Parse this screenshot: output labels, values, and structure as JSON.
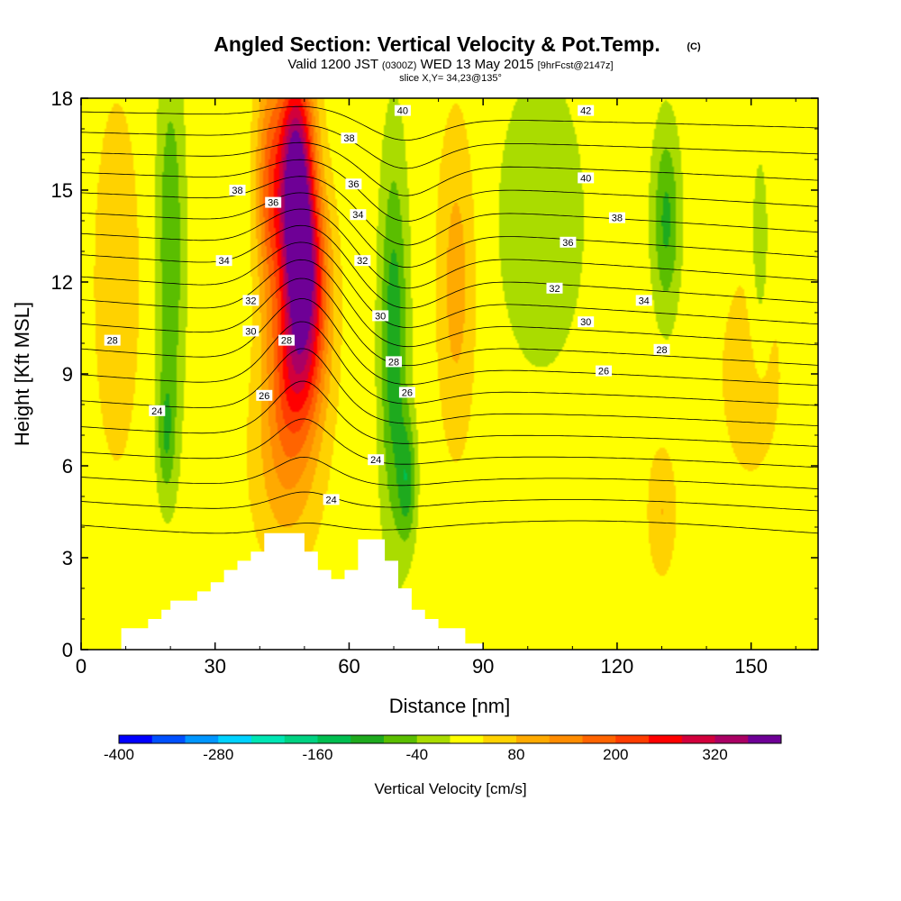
{
  "header": {
    "title": "Angled Section: Vertical Velocity & Pot.Temp.",
    "title_unit": "(C)",
    "valid_prefix": "Valid 1200 JST",
    "valid_z": "(0300Z)",
    "valid_date": "WED 13 May 2015",
    "fcst": "[9hrFcst@2147z]",
    "slice": "slice X,Y= 34,23@135°"
  },
  "chart_data": {
    "type": "heatmap",
    "title": "Angled Section: Vertical Velocity & Pot.Temp. (C)",
    "xlabel": "Distance [nm]",
    "ylabel": "Height [Kft MSL]",
    "xlim": [
      0,
      165
    ],
    "ylim": [
      0,
      18
    ],
    "x_ticks": [
      "0",
      "30",
      "60",
      "90",
      "120",
      "150"
    ],
    "y_ticks": [
      "0",
      "3",
      "6",
      "9",
      "12",
      "15",
      "18"
    ],
    "colorbar": {
      "label": "Vertical Velocity [cm/s]",
      "range": [
        -400,
        400
      ],
      "step": 40,
      "tick_labels": [
        "-400",
        "-280",
        "-160",
        "-40",
        "80",
        "200",
        "320"
      ],
      "colors": [
        "#0000ff",
        "#0050ff",
        "#0096ff",
        "#00d2ff",
        "#00e6b4",
        "#00d282",
        "#00be50",
        "#1eaa1e",
        "#5abe00",
        "#aadc00",
        "#ffff00",
        "#ffd200",
        "#ffaa00",
        "#ff8c00",
        "#ff6400",
        "#ff3c00",
        "#ff0000",
        "#d2003c",
        "#aa0064",
        "#6e0096"
      ]
    },
    "velocity_features": [
      {
        "x": 48,
        "y": 15.5,
        "value": 380,
        "sx": 4,
        "sy": 3.5
      },
      {
        "x": 50,
        "y": 12,
        "value": 300,
        "sx": 5,
        "sy": 3
      },
      {
        "x": 48,
        "y": 9,
        "value": 160,
        "sx": 6,
        "sy": 2.5
      },
      {
        "x": 46,
        "y": 6,
        "value": 90,
        "sx": 7,
        "sy": 3
      },
      {
        "x": 42,
        "y": 15,
        "value": 140,
        "sx": 3,
        "sy": 4
      },
      {
        "x": 84,
        "y": 12,
        "value": 80,
        "sx": 4,
        "sy": 5
      },
      {
        "x": 70,
        "y": 10,
        "value": -130,
        "sx": 3,
        "sy": 6
      },
      {
        "x": 73,
        "y": 5.5,
        "value": -110,
        "sx": 2,
        "sy": 2
      },
      {
        "x": 20,
        "y": 13,
        "value": -100,
        "sx": 3,
        "sy": 6
      },
      {
        "x": 19,
        "y": 7,
        "value": -80,
        "sx": 2,
        "sy": 2
      },
      {
        "x": 131,
        "y": 14,
        "value": -110,
        "sx": 3,
        "sy": 3
      },
      {
        "x": 152,
        "y": 13,
        "value": -60,
        "sx": 2,
        "sy": 3
      },
      {
        "x": 103,
        "y": 14,
        "value": -50,
        "sx": 10,
        "sy": 5
      },
      {
        "x": 130,
        "y": 4.5,
        "value": 60,
        "sx": 3,
        "sy": 2
      },
      {
        "x": 150,
        "y": 9,
        "value": 30,
        "sx": 10,
        "sy": 5
      },
      {
        "x": 8,
        "y": 12,
        "value": 40,
        "sx": 6,
        "sy": 7
      }
    ],
    "terrain": {
      "x": [
        0,
        9,
        9,
        15,
        15,
        18,
        18,
        20,
        20,
        23,
        23,
        26,
        26,
        29,
        29,
        32,
        32,
        35,
        35,
        38,
        38,
        41,
        41,
        47,
        47,
        50,
        50,
        53,
        53,
        56,
        56,
        59,
        59,
        62,
        62,
        65,
        65,
        68,
        68,
        71,
        71,
        74,
        74,
        77,
        77,
        80,
        80,
        83,
        83,
        86,
        86,
        90,
        90,
        165
      ],
      "y": [
        0,
        0,
        0.7,
        0.7,
        1.0,
        1.0,
        1.3,
        1.3,
        1.6,
        1.6,
        1.6,
        1.6,
        1.9,
        1.9,
        2.2,
        2.2,
        2.6,
        2.6,
        2.9,
        2.9,
        3.2,
        3.2,
        3.8,
        3.8,
        3.8,
        3.8,
        3.2,
        3.2,
        2.6,
        2.6,
        2.3,
        2.3,
        2.6,
        2.6,
        3.6,
        3.6,
        3.6,
        3.6,
        2.9,
        2.9,
        2.0,
        2.0,
        1.3,
        1.3,
        1.0,
        1.0,
        0.7,
        0.7,
        0.7,
        0.7,
        0.2,
        0.2,
        0,
        0
      ]
    },
    "theta_contours": {
      "levels": [
        24,
        25,
        26,
        27,
        28,
        29,
        30,
        31,
        32,
        33,
        34,
        35,
        36,
        37,
        38,
        39,
        40,
        41,
        42
      ],
      "labels": [
        {
          "text": "24",
          "x": 17,
          "y": 7.8
        },
        {
          "text": "24",
          "x": 66,
          "y": 6.2
        },
        {
          "text": "24",
          "x": 56,
          "y": 4.9
        },
        {
          "text": "26",
          "x": 41,
          "y": 8.3
        },
        {
          "text": "26",
          "x": 73,
          "y": 8.4
        },
        {
          "text": "26",
          "x": 117,
          "y": 9.1
        },
        {
          "text": "28",
          "x": 7,
          "y": 10.1
        },
        {
          "text": "28",
          "x": 46,
          "y": 10.1
        },
        {
          "text": "28",
          "x": 70,
          "y": 9.4
        },
        {
          "text": "28",
          "x": 130,
          "y": 9.8
        },
        {
          "text": "30",
          "x": 38,
          "y": 10.4
        },
        {
          "text": "30",
          "x": 67,
          "y": 10.9
        },
        {
          "text": "30",
          "x": 113,
          "y": 10.7
        },
        {
          "text": "32",
          "x": 38,
          "y": 11.4
        },
        {
          "text": "32",
          "x": 63,
          "y": 12.7
        },
        {
          "text": "32",
          "x": 106,
          "y": 11.8
        },
        {
          "text": "34",
          "x": 32,
          "y": 12.7
        },
        {
          "text": "34",
          "x": 62,
          "y": 14.2
        },
        {
          "text": "34",
          "x": 126,
          "y": 11.4
        },
        {
          "text": "36",
          "x": 43,
          "y": 14.6
        },
        {
          "text": "36",
          "x": 61,
          "y": 15.2
        },
        {
          "text": "36",
          "x": 109,
          "y": 13.3
        },
        {
          "text": "38",
          "x": 35,
          "y": 15.0
        },
        {
          "text": "38",
          "x": 60,
          "y": 16.7
        },
        {
          "text": "38",
          "x": 120,
          "y": 14.1
        },
        {
          "text": "40",
          "x": 72,
          "y": 17.6
        },
        {
          "text": "40",
          "x": 113,
          "y": 15.4
        },
        {
          "text": "42",
          "x": 113,
          "y": 17.6
        }
      ]
    },
    "grid": false
  }
}
